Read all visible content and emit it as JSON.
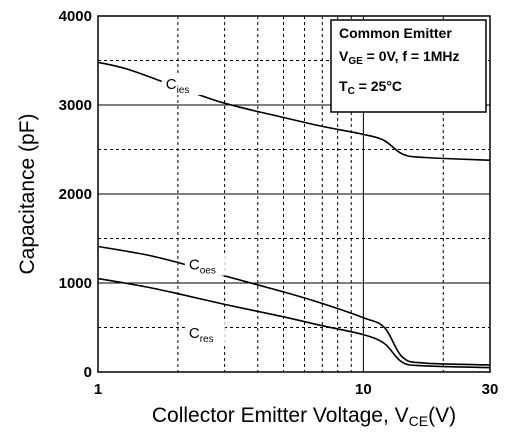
{
  "chart_data": {
    "type": "line",
    "xscale": "log",
    "xlim": [
      1,
      30
    ],
    "ylim": [
      0,
      4000
    ],
    "xticks": [
      {
        "value": 1,
        "label": "1"
      },
      {
        "value": 10,
        "label": "10"
      },
      {
        "value": 30,
        "label": "30"
      }
    ],
    "yticks": [
      {
        "value": 0,
        "label": "0"
      },
      {
        "value": 1000,
        "label": "1000"
      },
      {
        "value": 2000,
        "label": "2000"
      },
      {
        "value": 3000,
        "label": "3000"
      },
      {
        "value": 4000,
        "label": "4000"
      }
    ],
    "xlabel": {
      "main": "Collector Emitter Voltage, V",
      "sub": "CE",
      "tail": "(V)"
    },
    "ylabel": "Capacitance (pF)",
    "grid": true,
    "legend_box": {
      "line1": "Common Emitter",
      "line2": {
        "main": "V",
        "sub": "GE",
        "tail": " = 0V, f = 1MHz"
      },
      "line3": {
        "main": "T",
        "sub": "C",
        "tail": " = 25°C"
      },
      "placement": "top-right"
    },
    "series": [
      {
        "name": {
          "main": "C",
          "sub": "ies"
        },
        "label_at": {
          "x": 1.8,
          "y": 3180
        },
        "points": [
          [
            1,
            3480
          ],
          [
            1.3,
            3400
          ],
          [
            2,
            3200
          ],
          [
            3,
            3020
          ],
          [
            5,
            2860
          ],
          [
            7,
            2760
          ],
          [
            10,
            2670
          ],
          [
            12,
            2600
          ],
          [
            14,
            2450
          ],
          [
            17,
            2410
          ],
          [
            30,
            2380
          ]
        ]
      },
      {
        "name": {
          "main": "C",
          "sub": "oes"
        },
        "label_at": {
          "x": 2.2,
          "y": 1150
        },
        "points": [
          [
            1,
            1410
          ],
          [
            1.5,
            1320
          ],
          [
            2,
            1230
          ],
          [
            3,
            1080
          ],
          [
            5,
            900
          ],
          [
            7,
            770
          ],
          [
            10,
            610
          ],
          [
            12,
            500
          ],
          [
            14,
            170
          ],
          [
            17,
            100
          ],
          [
            30,
            80
          ]
        ]
      },
      {
        "name": {
          "main": "C",
          "sub": "res"
        },
        "label_at": {
          "x": 2.2,
          "y": 380
        },
        "points": [
          [
            1,
            1050
          ],
          [
            1.5,
            960
          ],
          [
            2,
            880
          ],
          [
            3,
            760
          ],
          [
            5,
            620
          ],
          [
            7,
            520
          ],
          [
            10,
            420
          ],
          [
            12,
            320
          ],
          [
            14,
            110
          ],
          [
            17,
            70
          ],
          [
            30,
            50
          ]
        ]
      }
    ]
  }
}
